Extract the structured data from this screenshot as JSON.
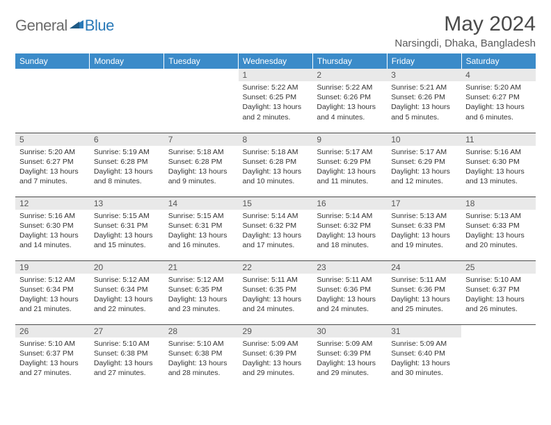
{
  "logo": {
    "general": "General",
    "blue": "Blue",
    "icon_color": "#2a7ab8"
  },
  "title": "May 2024",
  "location": "Narsingdi, Dhaka, Bangladesh",
  "colors": {
    "header_bg": "#3b8bc9",
    "header_text": "#ffffff",
    "daynum_bg": "#e9e9e9",
    "row_border": "#4a4a4a"
  },
  "weekdays": [
    "Sunday",
    "Monday",
    "Tuesday",
    "Wednesday",
    "Thursday",
    "Friday",
    "Saturday"
  ],
  "weeks": [
    [
      {
        "n": "",
        "sr": "",
        "ss": "",
        "dl": ""
      },
      {
        "n": "",
        "sr": "",
        "ss": "",
        "dl": ""
      },
      {
        "n": "",
        "sr": "",
        "ss": "",
        "dl": ""
      },
      {
        "n": "1",
        "sr": "Sunrise: 5:22 AM",
        "ss": "Sunset: 6:25 PM",
        "dl": "Daylight: 13 hours and 2 minutes."
      },
      {
        "n": "2",
        "sr": "Sunrise: 5:22 AM",
        "ss": "Sunset: 6:26 PM",
        "dl": "Daylight: 13 hours and 4 minutes."
      },
      {
        "n": "3",
        "sr": "Sunrise: 5:21 AM",
        "ss": "Sunset: 6:26 PM",
        "dl": "Daylight: 13 hours and 5 minutes."
      },
      {
        "n": "4",
        "sr": "Sunrise: 5:20 AM",
        "ss": "Sunset: 6:27 PM",
        "dl": "Daylight: 13 hours and 6 minutes."
      }
    ],
    [
      {
        "n": "5",
        "sr": "Sunrise: 5:20 AM",
        "ss": "Sunset: 6:27 PM",
        "dl": "Daylight: 13 hours and 7 minutes."
      },
      {
        "n": "6",
        "sr": "Sunrise: 5:19 AM",
        "ss": "Sunset: 6:28 PM",
        "dl": "Daylight: 13 hours and 8 minutes."
      },
      {
        "n": "7",
        "sr": "Sunrise: 5:18 AM",
        "ss": "Sunset: 6:28 PM",
        "dl": "Daylight: 13 hours and 9 minutes."
      },
      {
        "n": "8",
        "sr": "Sunrise: 5:18 AM",
        "ss": "Sunset: 6:28 PM",
        "dl": "Daylight: 13 hours and 10 minutes."
      },
      {
        "n": "9",
        "sr": "Sunrise: 5:17 AM",
        "ss": "Sunset: 6:29 PM",
        "dl": "Daylight: 13 hours and 11 minutes."
      },
      {
        "n": "10",
        "sr": "Sunrise: 5:17 AM",
        "ss": "Sunset: 6:29 PM",
        "dl": "Daylight: 13 hours and 12 minutes."
      },
      {
        "n": "11",
        "sr": "Sunrise: 5:16 AM",
        "ss": "Sunset: 6:30 PM",
        "dl": "Daylight: 13 hours and 13 minutes."
      }
    ],
    [
      {
        "n": "12",
        "sr": "Sunrise: 5:16 AM",
        "ss": "Sunset: 6:30 PM",
        "dl": "Daylight: 13 hours and 14 minutes."
      },
      {
        "n": "13",
        "sr": "Sunrise: 5:15 AM",
        "ss": "Sunset: 6:31 PM",
        "dl": "Daylight: 13 hours and 15 minutes."
      },
      {
        "n": "14",
        "sr": "Sunrise: 5:15 AM",
        "ss": "Sunset: 6:31 PM",
        "dl": "Daylight: 13 hours and 16 minutes."
      },
      {
        "n": "15",
        "sr": "Sunrise: 5:14 AM",
        "ss": "Sunset: 6:32 PM",
        "dl": "Daylight: 13 hours and 17 minutes."
      },
      {
        "n": "16",
        "sr": "Sunrise: 5:14 AM",
        "ss": "Sunset: 6:32 PM",
        "dl": "Daylight: 13 hours and 18 minutes."
      },
      {
        "n": "17",
        "sr": "Sunrise: 5:13 AM",
        "ss": "Sunset: 6:33 PM",
        "dl": "Daylight: 13 hours and 19 minutes."
      },
      {
        "n": "18",
        "sr": "Sunrise: 5:13 AM",
        "ss": "Sunset: 6:33 PM",
        "dl": "Daylight: 13 hours and 20 minutes."
      }
    ],
    [
      {
        "n": "19",
        "sr": "Sunrise: 5:12 AM",
        "ss": "Sunset: 6:34 PM",
        "dl": "Daylight: 13 hours and 21 minutes."
      },
      {
        "n": "20",
        "sr": "Sunrise: 5:12 AM",
        "ss": "Sunset: 6:34 PM",
        "dl": "Daylight: 13 hours and 22 minutes."
      },
      {
        "n": "21",
        "sr": "Sunrise: 5:12 AM",
        "ss": "Sunset: 6:35 PM",
        "dl": "Daylight: 13 hours and 23 minutes."
      },
      {
        "n": "22",
        "sr": "Sunrise: 5:11 AM",
        "ss": "Sunset: 6:35 PM",
        "dl": "Daylight: 13 hours and 24 minutes."
      },
      {
        "n": "23",
        "sr": "Sunrise: 5:11 AM",
        "ss": "Sunset: 6:36 PM",
        "dl": "Daylight: 13 hours and 24 minutes."
      },
      {
        "n": "24",
        "sr": "Sunrise: 5:11 AM",
        "ss": "Sunset: 6:36 PM",
        "dl": "Daylight: 13 hours and 25 minutes."
      },
      {
        "n": "25",
        "sr": "Sunrise: 5:10 AM",
        "ss": "Sunset: 6:37 PM",
        "dl": "Daylight: 13 hours and 26 minutes."
      }
    ],
    [
      {
        "n": "26",
        "sr": "Sunrise: 5:10 AM",
        "ss": "Sunset: 6:37 PM",
        "dl": "Daylight: 13 hours and 27 minutes."
      },
      {
        "n": "27",
        "sr": "Sunrise: 5:10 AM",
        "ss": "Sunset: 6:38 PM",
        "dl": "Daylight: 13 hours and 27 minutes."
      },
      {
        "n": "28",
        "sr": "Sunrise: 5:10 AM",
        "ss": "Sunset: 6:38 PM",
        "dl": "Daylight: 13 hours and 28 minutes."
      },
      {
        "n": "29",
        "sr": "Sunrise: 5:09 AM",
        "ss": "Sunset: 6:39 PM",
        "dl": "Daylight: 13 hours and 29 minutes."
      },
      {
        "n": "30",
        "sr": "Sunrise: 5:09 AM",
        "ss": "Sunset: 6:39 PM",
        "dl": "Daylight: 13 hours and 29 minutes."
      },
      {
        "n": "31",
        "sr": "Sunrise: 5:09 AM",
        "ss": "Sunset: 6:40 PM",
        "dl": "Daylight: 13 hours and 30 minutes."
      },
      {
        "n": "",
        "sr": "",
        "ss": "",
        "dl": ""
      }
    ]
  ]
}
